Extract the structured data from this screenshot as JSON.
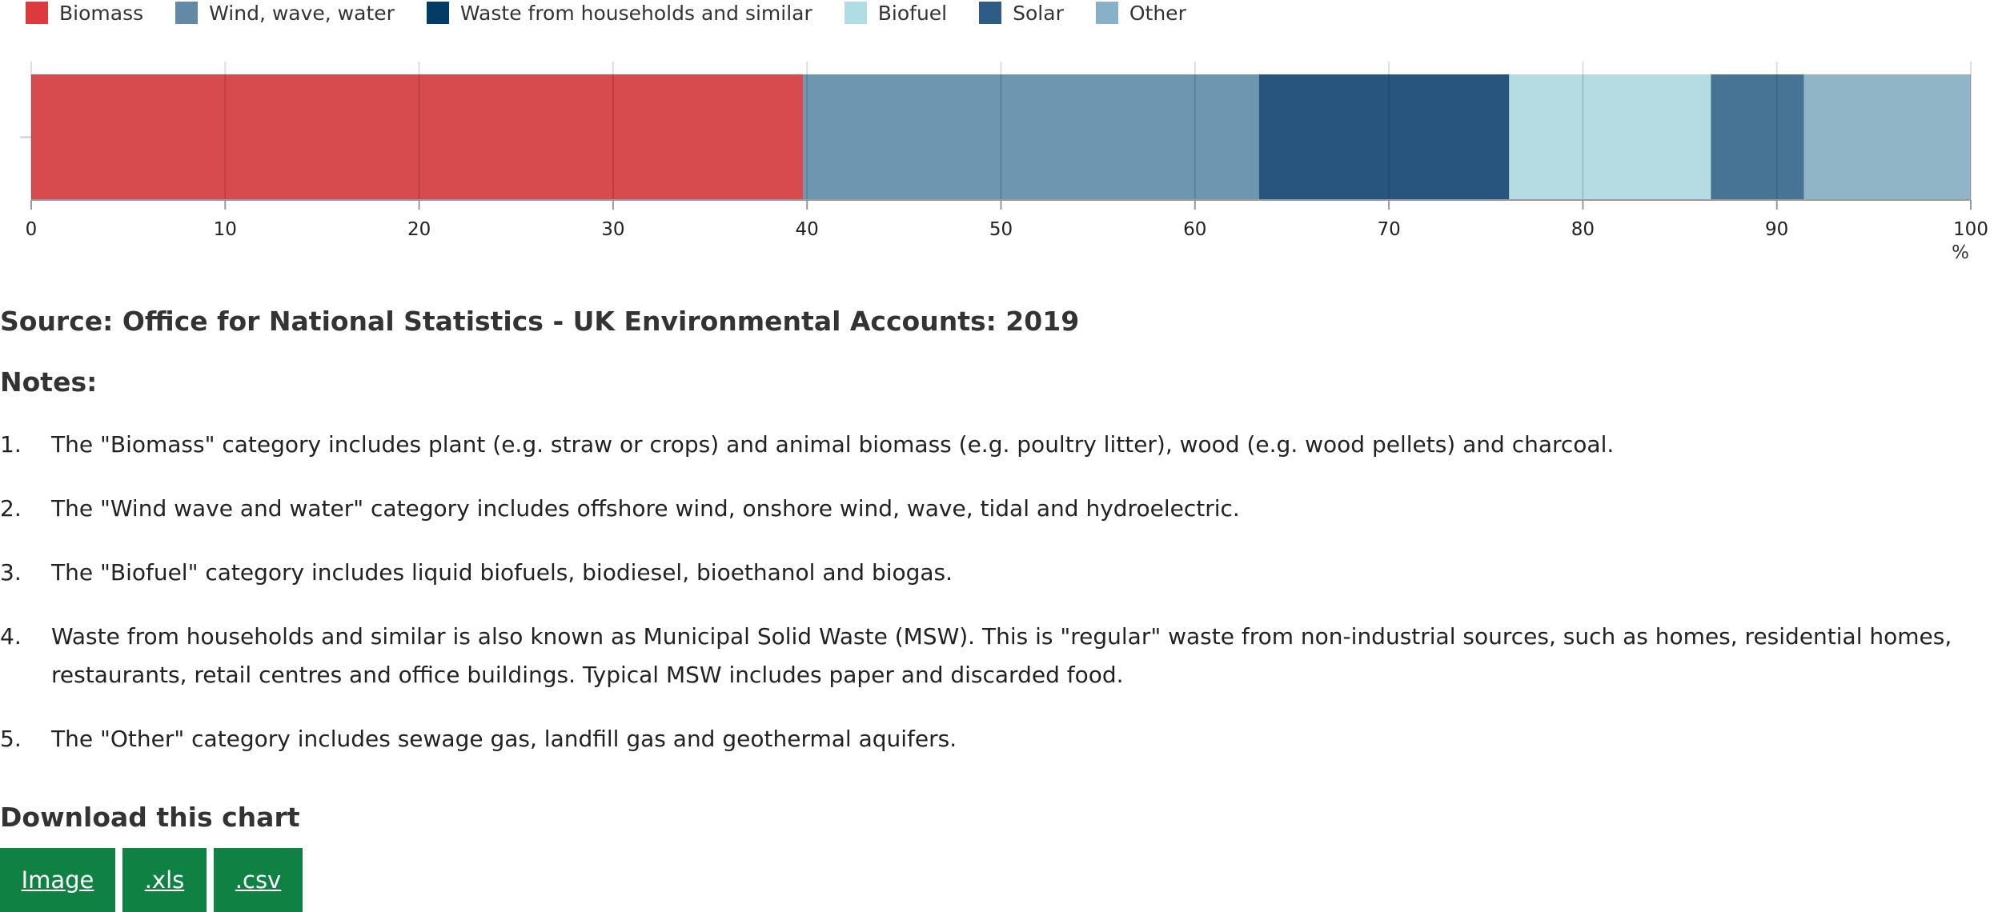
{
  "chart_data": {
    "type": "bar",
    "orientation": "horizontal",
    "stacked": true,
    "title": "",
    "xlabel": "%",
    "ylabel": "",
    "xlim": [
      0,
      100
    ],
    "x_ticks": [
      0,
      10,
      20,
      30,
      40,
      50,
      60,
      70,
      80,
      90,
      100
    ],
    "grid": true,
    "legend_position": "top-left",
    "categories": [
      ""
    ],
    "series": [
      {
        "name": "Biomass",
        "values": [
          39.8
        ],
        "color": "#d74b4f"
      },
      {
        "name": "Wind, wave, water",
        "values": [
          23.5
        ],
        "color": "#6d96b0"
      },
      {
        "name": "Waste from households and similar",
        "values": [
          12.9
        ],
        "color": "#27557e"
      },
      {
        "name": "Biofuel",
        "values": [
          10.4
        ],
        "color": "#b5dce3"
      },
      {
        "name": "Solar",
        "values": [
          4.8
        ],
        "color": "#477495"
      },
      {
        "name": "Other",
        "values": [
          8.6
        ],
        "color": "#8fb5c7"
      }
    ]
  },
  "legend_colors": {
    "biomass": "#dc3b3d",
    "wind": "#6289a8",
    "waste": "#003c66",
    "biofuel": "#b0dde3",
    "solar": "#2d5d87",
    "other": "#86b1c6"
  },
  "source": "Source: Office for National Statistics - UK Environmental Accounts: 2019",
  "notes": {
    "title": "Notes:",
    "items": [
      {
        "number": "1.",
        "text": "The \"Biomass\" category includes plant (e.g. straw or crops) and animal biomass (e.g. poultry litter), wood (e.g. wood pellets) and charcoal."
      },
      {
        "number": "2.",
        "text": "The \"Wind wave and water\" category includes offshore wind, onshore wind, wave, tidal and hydroelectric."
      },
      {
        "number": "3.",
        "text": "The \"Biofuel\" category includes liquid biofuels, biodiesel, bioethanol and biogas."
      },
      {
        "number": "4.",
        "text": "Waste from households and similar is also known as Municipal Solid Waste (MSW). This is \"regular\" waste from non-industrial sources, such as homes, residential homes, restaurants, retail centres and office buildings. Typical MSW includes paper and discarded food."
      },
      {
        "number": "5.",
        "text": "The \"Other\" category includes sewage gas, landfill gas and geothermal aquifers."
      }
    ]
  },
  "download": {
    "title": "Download this chart",
    "buttons": [
      {
        "label": "Image"
      },
      {
        "label": ".xls"
      },
      {
        "label": ".csv"
      }
    ]
  }
}
